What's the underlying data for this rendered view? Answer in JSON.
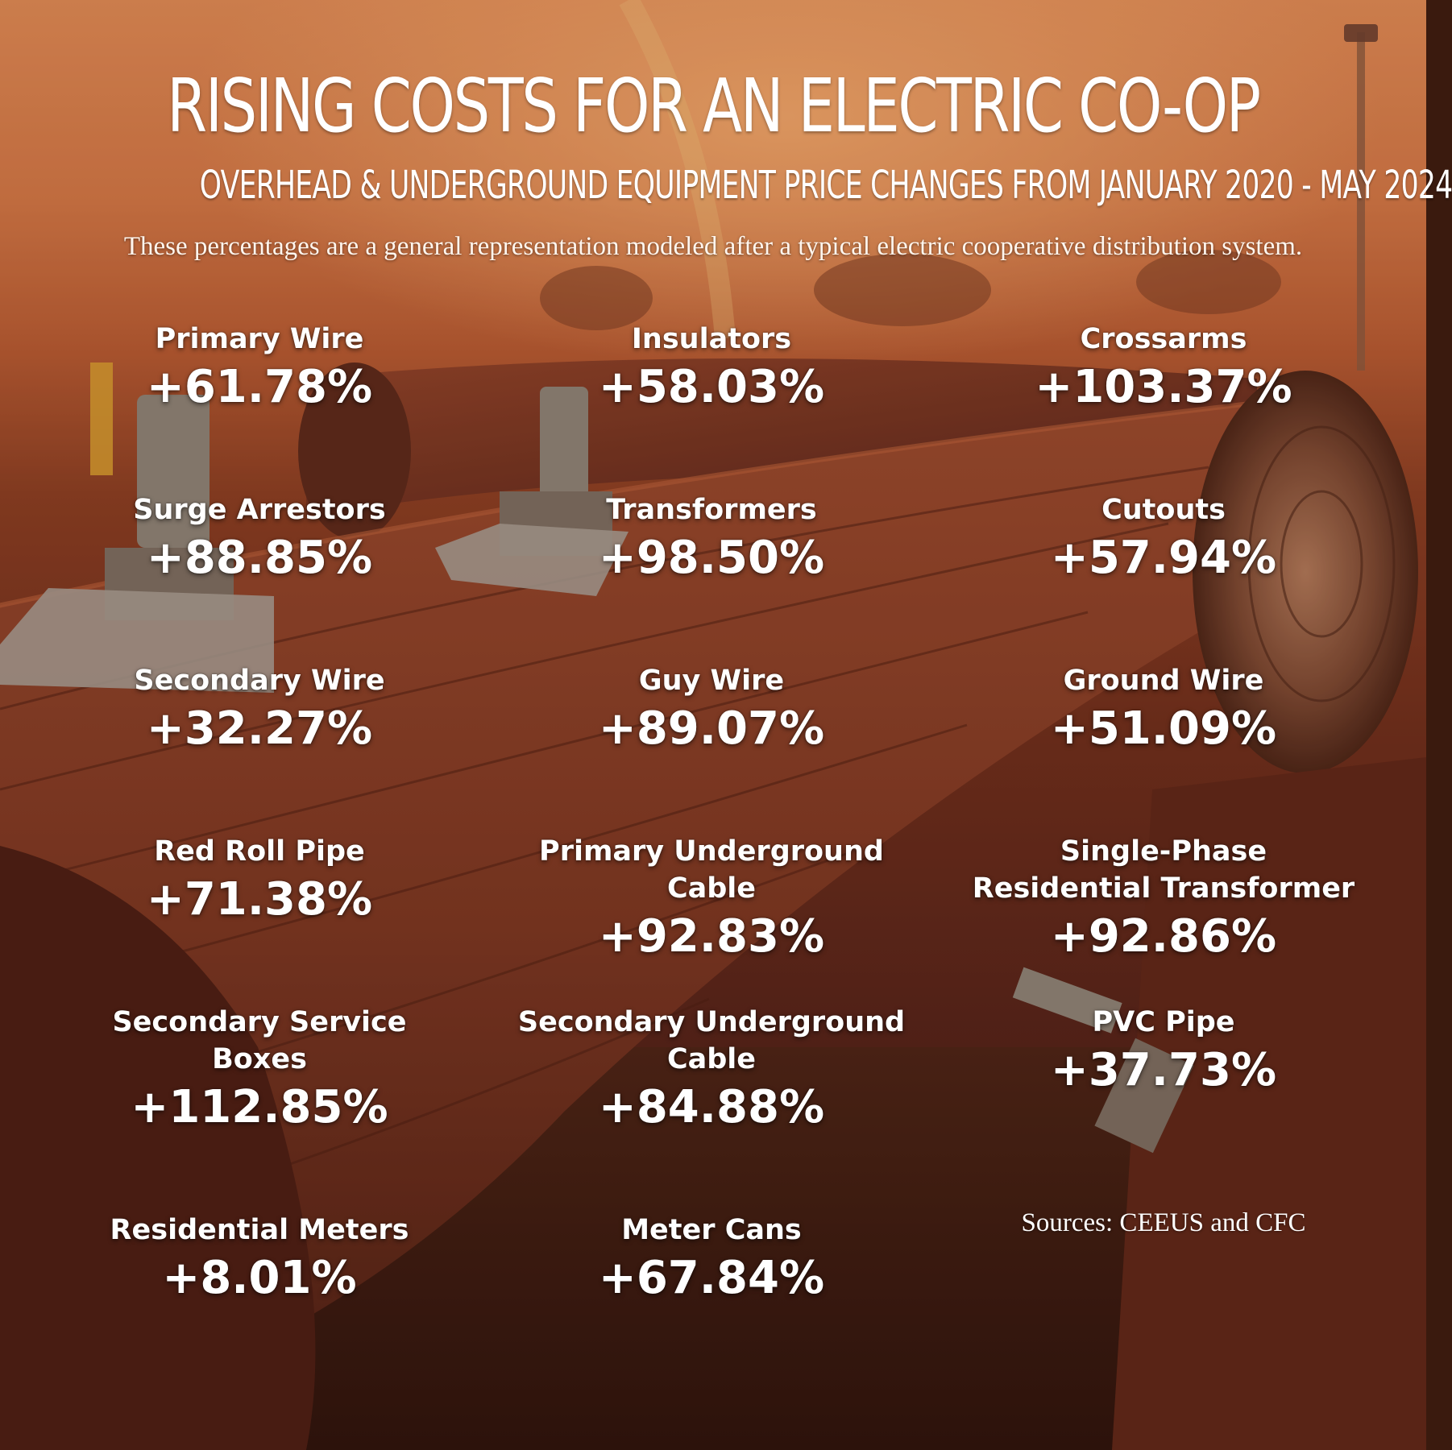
{
  "header": {
    "title": "RISING COSTS FOR AN ELECTRIC CO-OP",
    "subtitle": "OVERHEAD & UNDERGROUND EQUIPMENT PRICE CHANGES FROM JANUARY 2020 - MAY 2024",
    "note": "These percentages are a general representation modeled after a typical electric cooperative distribution system."
  },
  "items": [
    {
      "label": "Primary Wire",
      "value": "+61.78%"
    },
    {
      "label": "Insulators",
      "value": "+58.03%"
    },
    {
      "label": "Crossarms",
      "value": "+103.37%"
    },
    {
      "label": "Surge Arrestors",
      "value": "+88.85%"
    },
    {
      "label": "Transformers",
      "value": "+98.50%"
    },
    {
      "label": "Cutouts",
      "value": "+57.94%"
    },
    {
      "label": "Secondary Wire",
      "value": "+32.27%"
    },
    {
      "label": "Guy Wire",
      "value": "+89.07%"
    },
    {
      "label": "Ground Wire",
      "value": "+51.09%"
    },
    {
      "label": "Red Roll Pipe",
      "value": "+71.38%"
    },
    {
      "label": "Primary Underground\nCable",
      "value": "+92.83%"
    },
    {
      "label": "Single-Phase\nResidential Transformer",
      "value": "+92.86%"
    },
    {
      "label": "Secondary Service\nBoxes",
      "value": "+112.85%"
    },
    {
      "label": "Secondary Underground\nCable",
      "value": "+84.88%"
    },
    {
      "label": "PVC Pipe",
      "value": "+37.73%"
    },
    {
      "label": "Residential Meters",
      "value": "+8.01%"
    },
    {
      "label": "Meter Cans",
      "value": "+67.84%"
    }
  ],
  "sources": "Sources: CEEUS and CFC",
  "colors": {
    "text": "#ffffff",
    "sky": "#e08c56",
    "wood": "#6e2f1c"
  }
}
